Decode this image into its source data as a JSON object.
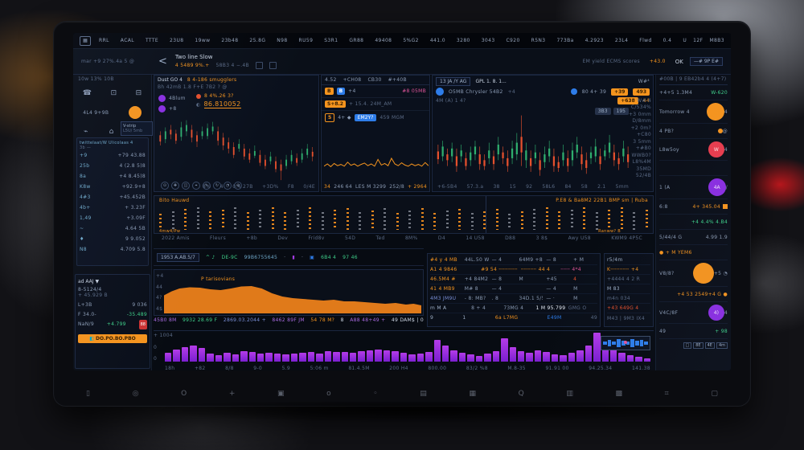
{
  "accent": {
    "orange": "#f5941e",
    "green": "#3fd08a",
    "red": "#e5502d",
    "purple": "#a23ce0",
    "blue": "#2e7de9",
    "pink": "#e0559a",
    "cyan": "#6fa8c8"
  },
  "menubar": {
    "logo": "▦",
    "items": [
      "RRL",
      "ACAL",
      "TTTE",
      "23U8",
      "19ww",
      "23b48",
      "25.8G",
      "N98",
      "RU59",
      "S3R1",
      "GR88",
      "49408",
      "5%G2",
      "441.0",
      "3280",
      "3043",
      "C920",
      "R5N3",
      "773Ba",
      "4.2923",
      "23L4",
      "Flwd",
      "0.4"
    ],
    "right": [
      "U",
      "12F",
      "M8B3"
    ]
  },
  "subheader": {
    "left_small": "mar +9 27%.4a   5 @",
    "back": "<",
    "title": "Two line Slow",
    "price": "4 5489 9%.+",
    "price2": "58B3 4  −.4B",
    "right_text": "EM yield ECMS scores",
    "right_val": "+43.0",
    "ok": "OK",
    "toggle": "—#   9P   E#"
  },
  "left_sidebar": {
    "tiny_header": "10w   13%   10B",
    "icons_row1": [
      "☎",
      "⊡",
      "⊟"
    ],
    "icons_row2": [
      "⌁",
      "⌂",
      "↻"
    ],
    "row2_label": "4L4    9+9B",
    "watch_header": "twittelaat/W Ulicolaas  4",
    "watch_sub": "3b  —",
    "watch_rows": [
      [
        "+9",
        "+79 43.88"
      ],
      [
        "25b",
        "4 (2.8 5)8"
      ],
      [
        "8a",
        "+4 8.45)8"
      ],
      [
        "K8w",
        "+92.9+8"
      ],
      [
        "4#3",
        "+45.452B"
      ],
      [
        "4b+",
        "+ 3.23F"
      ],
      [
        "1,49",
        "+3.09F"
      ],
      [
        "~",
        "4.64 5B"
      ],
      [
        "♦",
        "9 9.052"
      ],
      [
        "N8",
        "4.709 5.8"
      ]
    ],
    "tag_line1": "V-strip",
    "tag_line2": "L5U/ 5mb",
    "pos_header": "ad AAJ  ▼",
    "pos_sub1": "8-5124/4",
    "pos_sub2": "+ 45.929  B",
    "pos_rows": [
      {
        "l": "L+3B",
        "v": "9 036",
        "g": false,
        "b": ""
      },
      {
        "l": "F 34.0-",
        "v": "-35.489",
        "g": true,
        "b": ""
      },
      {
        "l": "NaN/9",
        "v": "+4.799",
        "g": true,
        "b": "88"
      }
    ],
    "cta": "DO.PO.BO.PBO",
    "cta_icon": "◧"
  },
  "chart_left": {
    "title": "Dust GO 4",
    "title2": "8 4-186 smugglers",
    "sub": "Bh 42mB 1.8 F+E 7B2    ?  @",
    "legend": [
      "4Blum",
      "+8"
    ],
    "price1": "8 4%.26 3?",
    "price2": "86.810052",
    "tools": [
      "⊙",
      "✚",
      "◫",
      "⌖",
      "✎",
      "↻",
      "◔",
      "⊕"
    ],
    "xlabels": [
      "8%",
      "4",
      "0:4  27B",
      "+3D%",
      "F8",
      "0/4E"
    ],
    "candles": [
      [
        35,
        8,
        30,
        48,
        0
      ],
      [
        30,
        10,
        25,
        45,
        1
      ],
      [
        28,
        6,
        22,
        40,
        0
      ],
      [
        33,
        9,
        28,
        46,
        0
      ],
      [
        25,
        12,
        18,
        42,
        1
      ],
      [
        22,
        8,
        16,
        36,
        1
      ],
      [
        28,
        10,
        22,
        44,
        0
      ],
      [
        35,
        8,
        30,
        50,
        0
      ],
      [
        30,
        6,
        24,
        40,
        1
      ],
      [
        26,
        10,
        20,
        40,
        1
      ],
      [
        24,
        6,
        18,
        34,
        1
      ],
      [
        30,
        12,
        24,
        48,
        0
      ],
      [
        38,
        10,
        32,
        54,
        0
      ],
      [
        44,
        8,
        38,
        58,
        0
      ],
      [
        50,
        10,
        44,
        64,
        0
      ],
      [
        46,
        6,
        40,
        56,
        1
      ],
      [
        52,
        10,
        46,
        66,
        0
      ],
      [
        58,
        8,
        52,
        70,
        0
      ],
      [
        55,
        6,
        48,
        64,
        1
      ],
      [
        60,
        10,
        54,
        74,
        0
      ],
      [
        66,
        8,
        60,
        78,
        0
      ],
      [
        62,
        6,
        56,
        72,
        1
      ],
      [
        68,
        10,
        62,
        82,
        0
      ],
      [
        72,
        8,
        66,
        92,
        0
      ],
      [
        66,
        8,
        60,
        78,
        1
      ],
      [
        60,
        8,
        54,
        72,
        1
      ],
      [
        64,
        6,
        58,
        74,
        0
      ],
      [
        58,
        8,
        52,
        70,
        1
      ],
      [
        52,
        8,
        46,
        64,
        1
      ],
      [
        56,
        6,
        50,
        68,
        0
      ]
    ]
  },
  "order_panel": {
    "tabs": [
      "4.52",
      "+CH08",
      "CB30",
      "#+40B"
    ],
    "row1_chips": [
      "B",
      "B"
    ],
    "row1_label": "+4",
    "row1_value": "#8 05MB",
    "row2_chip": "S+8.2",
    "row2_value": "+ 15.4.   24M_AM",
    "row3_chip": "5",
    "row3_label": "4+ ◆",
    "row3_pill": "EM2Y?",
    "row3_value": "459 MGM",
    "nums": [
      "34",
      "246 64",
      "LES M 3299",
      "252/8",
      "+ 2964"
    ],
    "spark": [
      60,
      50,
      62,
      48,
      58,
      52,
      60,
      42,
      56,
      50,
      60,
      52,
      46,
      58,
      50,
      60,
      30,
      55,
      48,
      58,
      25,
      50,
      58,
      45,
      55,
      60,
      50,
      58,
      52,
      60,
      44,
      58
    ]
  },
  "chart_right": {
    "symbox": "13 JA /Y AG",
    "mid": "GPL 1. 8. 1...",
    "h1": "O5MB Chrysler 54B2",
    "h1b": "+4",
    "h2": "4M  (A)  1 4?",
    "h3": "80 4+ 39",
    "btns_orange": [
      "+39",
      "493",
      "+638",
      "44"
    ],
    "btns_gray": [
      "3B3",
      "195"
    ],
    "ylabels": [
      "W# 4",
      "C/534%",
      "+3 0mm",
      "D/8mm",
      "+2 0m?",
      "+C80",
      "3 5mm",
      "+#B0",
      "WWB0?",
      "L8%4M",
      "35MD",
      "52/4B"
    ],
    "xlabels": [
      "+6-5B4",
      "57.3.a",
      "38",
      "15",
      "92",
      "58L6",
      "84",
      "58",
      "2.1",
      "5mm"
    ],
    "candles": [
      [
        45,
        8,
        38,
        58,
        0
      ],
      [
        40,
        10,
        34,
        55,
        1
      ],
      [
        48,
        6,
        42,
        60,
        0
      ],
      [
        42,
        8,
        36,
        56,
        1
      ],
      [
        50,
        10,
        42,
        66,
        0
      ],
      [
        44,
        6,
        38,
        56,
        1
      ],
      [
        52,
        8,
        46,
        64,
        0
      ],
      [
        46,
        8,
        40,
        60,
        1
      ],
      [
        40,
        8,
        34,
        54,
        1
      ],
      [
        48,
        10,
        40,
        64,
        0
      ],
      [
        54,
        6,
        48,
        64,
        0
      ],
      [
        44,
        8,
        36,
        58,
        1
      ],
      [
        50,
        8,
        44,
        64,
        0
      ],
      [
        38,
        10,
        30,
        54,
        1
      ],
      [
        46,
        6,
        40,
        58,
        0
      ],
      [
        52,
        8,
        44,
        66,
        0
      ],
      [
        42,
        10,
        34,
        58,
        1
      ],
      [
        36,
        12,
        26,
        54,
        1
      ],
      [
        30,
        16,
        8,
        60,
        0
      ],
      [
        44,
        10,
        36,
        62,
        1
      ],
      [
        52,
        8,
        44,
        66,
        0
      ],
      [
        46,
        6,
        38,
        58,
        1
      ],
      [
        54,
        10,
        46,
        70,
        0
      ],
      [
        48,
        8,
        40,
        62,
        1
      ],
      [
        42,
        8,
        34,
        56,
        1
      ],
      [
        50,
        10,
        42,
        66,
        0
      ],
      [
        56,
        6,
        50,
        66,
        0
      ],
      [
        46,
        8,
        38,
        60,
        1
      ],
      [
        52,
        8,
        44,
        66,
        0
      ],
      [
        44,
        10,
        36,
        60,
        1
      ],
      [
        38,
        8,
        30,
        52,
        1
      ],
      [
        48,
        10,
        40,
        64,
        0
      ],
      [
        54,
        8,
        46,
        68,
        0
      ],
      [
        46,
        6,
        40,
        58,
        1
      ],
      [
        40,
        10,
        32,
        56,
        1
      ],
      [
        50,
        8,
        42,
        64,
        0
      ],
      [
        44,
        6,
        38,
        54,
        1
      ],
      [
        36,
        10,
        28,
        52,
        1
      ],
      [
        46,
        8,
        38,
        60,
        0
      ],
      [
        52,
        6,
        46,
        64,
        0
      ],
      [
        42,
        8,
        34,
        56,
        1
      ],
      [
        48,
        8,
        40,
        62,
        0
      ]
    ]
  },
  "strip": {
    "left_label": "Bito Hauwd",
    "right_label": "P.E8 & Ba8M2 22B1 BMP sm | Ruba",
    "foot_left": "4mw4/Pw",
    "foot_right": "Ranww?  B",
    "cols": [
      "o",
      "w",
      "o",
      "w",
      "o",
      "o",
      "w",
      "o",
      "w",
      "o",
      "o",
      "w",
      "o",
      "w",
      "o",
      "o",
      "w",
      "o",
      "w",
      "o",
      "w",
      "o",
      "o",
      "w",
      "o",
      "w",
      "o",
      "o",
      "w",
      "o",
      "w",
      "o",
      "o",
      "w",
      "o",
      "w",
      "o",
      "o",
      "w",
      "o"
    ],
    "labels": [
      "2022 Amis",
      "Fleurs",
      "+8b",
      "Dev",
      "Frid8v",
      "54D",
      "Ted",
      "8M%",
      "D4",
      "14 U58",
      "D88",
      "3 8$",
      "Awy U58",
      "KWM9 4P5C"
    ],
    "lock": "!"
  },
  "toolbar": {
    "box": "1953 A.AB.5/7",
    "items": [
      {
        "t": "^ ♪",
        "c": "#3fd08a"
      },
      {
        "t": "DE-9C",
        "c": "#3fd08a"
      },
      {
        "t": "99B6755645",
        "c": "#6fa8c8"
      },
      {
        "t": "·",
        "c": "#8b9bb4"
      },
      {
        "t": "▮",
        "c": "#a23ce0"
      },
      {
        "t": "·",
        "c": "#8b9bb4"
      },
      {
        "t": "▣",
        "c": "#2e7de9"
      },
      {
        "t": "6B4 4",
        "c": "#3fd08a"
      },
      {
        "t": "97 46",
        "c": "#3fd08a"
      }
    ]
  },
  "area_panel": {
    "label": "P tarisovians",
    "ylabels": [
      "+4",
      "44",
      "4?",
      "4$"
    ],
    "points": [
      [
        0,
        55
      ],
      [
        3,
        45
      ],
      [
        6,
        38
      ],
      [
        10,
        35
      ],
      [
        14,
        36
      ],
      [
        18,
        40
      ],
      [
        22,
        42
      ],
      [
        26,
        38
      ],
      [
        30,
        33
      ],
      [
        34,
        32
      ],
      [
        38,
        38
      ],
      [
        42,
        50
      ],
      [
        46,
        58
      ],
      [
        50,
        62
      ],
      [
        54,
        64
      ],
      [
        58,
        66
      ],
      [
        62,
        68
      ],
      [
        66,
        66
      ],
      [
        70,
        70
      ],
      [
        74,
        70
      ],
      [
        78,
        72
      ],
      [
        82,
        74
      ],
      [
        86,
        76
      ],
      [
        90,
        74
      ],
      [
        94,
        78
      ],
      [
        97,
        76
      ],
      [
        100,
        80
      ]
    ],
    "stats": [
      {
        "t": "45B0 8M",
        "c": "#a86ae0"
      },
      {
        "t": "9932 28.69 F",
        "c": "#3fd08a"
      },
      {
        "t": "2869.03.2044 +",
        "c": "#7a8fd8"
      },
      {
        "t": "8462 89F JM",
        "c": "#a86ae0"
      },
      {
        "t": "54 78 M?",
        "c": "#f5941e"
      },
      {
        "t": "8",
        "c": "#cfd8e6"
      },
      {
        "t": "A88 48+49 +",
        "c": "#a86ae0"
      },
      {
        "t": "49 DAM$ | 0",
        "c": "#cfd8e6"
      }
    ]
  },
  "table": {
    "rows": [
      [
        {
          "t": "#4 y 4 MB",
          "c": "#f5941e"
        },
        {
          "t": "44L.50 W"
        },
        {
          "t": "— 4"
        },
        {
          "t": "64M9 +8"
        },
        {
          "t": "— 8"
        },
        {
          "t": "+ M"
        }
      ],
      [
        {
          "t": "A1 4 9846",
          "c": "#f5941e"
        },
        {
          "t": "#9 54 ╌╌╌╌╌╌ MY8",
          "c": "#f5941e"
        },
        {
          "t": "╌╌╌╌╌ 44 4",
          "c": "#f5941e"
        },
        {
          "t": "╌╌╌ 4*4",
          "c": "#e0559a"
        }
      ],
      [
        {
          "t": "46.5M4 #",
          "c": "#f5941e"
        },
        {
          "t": "+4 84M2"
        },
        {
          "t": "— 8"
        },
        {
          "t": "M"
        },
        {
          "t": "+45"
        },
        {
          "t": "4",
          "c": "#e5502d"
        }
      ],
      [
        {
          "t": "41 4 MB9",
          "c": "#f5941e"
        },
        {
          "t": "M# 8"
        },
        {
          "t": "— 4"
        },
        {
          "t": ""
        },
        {
          "t": "— 4"
        },
        {
          "t": "M"
        }
      ],
      [
        {
          "t": "4M3 JM9U",
          "c": "#7a8fd8"
        },
        {
          "t": "- 8: MB?"
        },
        {
          "t": ". 8"
        },
        {
          "t": "34D.1 5/5Mr"
        },
        {
          "t": "— ·"
        },
        {
          "t": "M"
        }
      ],
      [
        {
          "t": "m M A",
          "c": "#9fb0c8"
        },
        {
          "t": "8 + 4"
        },
        {
          "t": "73MG 4"
        },
        {
          "t": "1 M 95.799",
          "c": "#e8eef8"
        },
        {
          "t": "GMG O",
          "c": "#5a6a85"
        }
      ]
    ],
    "footer": [
      {
        "t": "9",
        "c": "#9fb0c8"
      },
      {
        "t": "1",
        "c": "#9fb0c8"
      },
      {
        "t": "6a L7MG",
        "c": "#f5941e"
      },
      {
        "t": "E49M",
        "c": "#2e7de9"
      },
      {
        "t": "49",
        "c": "#5a6a85"
      }
    ]
  },
  "mini_panel": {
    "rows": [
      {
        "t": "r5/4m",
        "c": "#9fb0c8"
      },
      {
        "t": "K╌╌╌╌╌╌ +4",
        "c": "#f5941e"
      },
      {
        "t": "+4444 4 2 R",
        "c": "#5a6a85"
      },
      {
        "t": "M 83",
        "c": "#9fb0c8"
      },
      {
        "t": "m4n 034",
        "c": "#5a6a85"
      },
      {
        "t": "+43 649G  4",
        "c": "#e5502d"
      }
    ],
    "footer": "M43 |   9M3 IX4"
  },
  "bars_panel": {
    "type": "bar",
    "ylabels": [
      "+ 1004",
      "0",
      "0"
    ],
    "values": [
      30,
      42,
      50,
      55,
      48,
      28,
      22,
      30,
      26,
      36,
      33,
      28,
      30,
      28,
      26,
      28,
      30,
      33,
      28,
      35,
      34,
      32,
      30,
      36,
      38,
      42,
      40,
      35,
      30,
      25,
      28,
      32,
      75,
      55,
      40,
      30,
      24,
      20,
      28,
      35,
      80,
      50,
      35,
      30,
      38,
      32,
      26,
      22,
      30,
      40,
      55,
      100,
      60,
      45,
      30,
      22,
      18,
      12
    ],
    "xlabels": [
      "18h",
      "+82",
      "8/8",
      "9-0",
      "5.9",
      "5:06 m",
      "81.4.5M",
      "200 H4",
      "800.00",
      "83/2 %8",
      "M.8-35",
      "91.91 00",
      "94.25.34",
      "141.38"
    ],
    "inset_values": [
      40,
      60,
      30,
      80,
      50,
      35,
      90,
      45,
      60,
      38
    ]
  },
  "right_sidebar": {
    "header": "#00B | 9    EB42b4  4    (4+7)",
    "rows": [
      {
        "l": "+4+5 1.3M4",
        "v": "W-620",
        "vc": "#3fd08a"
      },
      {
        "l": "Tomorrow 4",
        "circ": {
          "bg": "#f5941e",
          "d": 22,
          "t": ""
        },
        "v": "4"
      },
      {
        "l": "4 PB?",
        "v": "@",
        "dot": true
      },
      {
        "l": "L8w5oy",
        "circ": {
          "bg": "#e83d4e",
          "d": 20,
          "t": "W"
        },
        "v": "4"
      },
      {
        "l": "",
        "v": ""
      },
      {
        "l": "1 (A",
        "circ": {
          "bg": "#8a2fe0",
          "d": 22,
          "t": "4A"
        },
        "v": "/"
      },
      {
        "l": "6:8",
        "v": "4+ 345.04",
        "vc": "#f5941e",
        "sq": true
      },
      {
        "l": "",
        "v": "+4 4.4% 4.B4",
        "vc": "#3fd08a"
      },
      {
        "l": "5/44/4 G",
        "v": "4.99  1.9",
        "vc": "#8d9bb0"
      },
      {
        "l": "● + M YEM6",
        "lc": "#f5941e",
        "v": ""
      },
      {
        "l": "V8/8?",
        "circ": {
          "bg": "#f5941e",
          "d": 26,
          "t": ""
        },
        "v": "+5 ◔"
      },
      {
        "l": "",
        "v": "+4 53 2549+4 G ●",
        "vc": "#f5941e"
      },
      {
        "l": "V4C/8F",
        "circ": {
          "bg": "#8a2fe0",
          "d": 20,
          "t": "4)"
        },
        "v": "4"
      },
      {
        "l": "49",
        "v": "+ 98",
        "vc": "#3fd08a"
      }
    ],
    "pager": [
      "□",
      "8E",
      "4E",
      "4m"
    ]
  },
  "dock": {
    "icons": [
      "▯",
      "◎",
      "O",
      "+",
      "▣",
      "o",
      "◦",
      "▤",
      "▦",
      "Q",
      "▥",
      "▩",
      "⌗",
      "▢"
    ]
  }
}
